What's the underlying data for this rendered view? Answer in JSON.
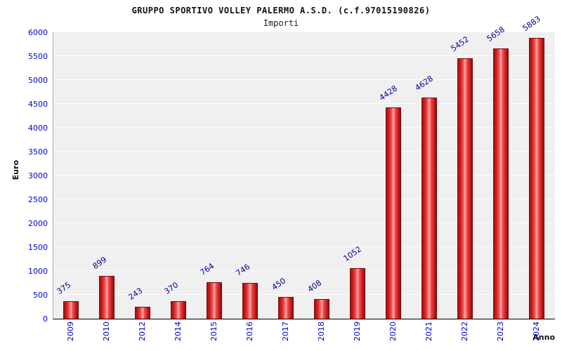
{
  "header": {
    "title": "GRUPPO SPORTIVO VOLLEY PALERMO A.S.D. (c.f.97015190826)",
    "subtitle": "Importi"
  },
  "chart_data": {
    "type": "bar",
    "title": "GRUPPO SPORTIVO VOLLEY PALERMO A.S.D. (c.f.97015190826)",
    "subtitle": "Importi",
    "categories": [
      "2009",
      "2010",
      "2012",
      "2014",
      "2015",
      "2016",
      "2017",
      "2018",
      "2019",
      "2020",
      "2021",
      "2022",
      "2023",
      "2024"
    ],
    "values": [
      375,
      899,
      243,
      370,
      764,
      746,
      450,
      408,
      1052,
      4428,
      4628,
      5452,
      5658,
      5883
    ],
    "xlabel": "Anno",
    "ylabel": "Euro",
    "ylim": [
      0,
      6000
    ],
    "ytick_step": 500,
    "grid": true,
    "legend": "none",
    "colors": {
      "bar": "#d92525",
      "tick_label": "#0000cc",
      "value_label": "#000099",
      "plot_background": "#f0f0f0",
      "gridline": "#ffffff"
    }
  }
}
